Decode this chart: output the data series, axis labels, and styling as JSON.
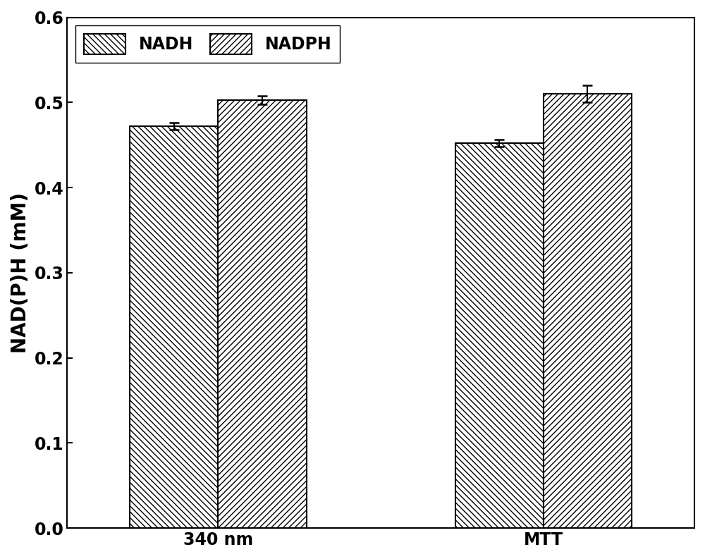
{
  "groups": [
    "340 nm",
    "MTT"
  ],
  "series": [
    "NADH",
    "NADPH"
  ],
  "values": {
    "NADH": [
      0.472,
      0.452
    ],
    "NADPH": [
      0.503,
      0.51
    ]
  },
  "errors": {
    "NADH": [
      0.004,
      0.004
    ],
    "NADPH": [
      0.005,
      0.01
    ]
  },
  "bar_width": 0.38,
  "group_positions": [
    1.0,
    2.4
  ],
  "ylim": [
    0.0,
    0.6
  ],
  "yticks": [
    0.0,
    0.1,
    0.2,
    0.3,
    0.4,
    0.5,
    0.6
  ],
  "ylabel": "NAD(P)H (mM)",
  "bar_facecolor": "white",
  "bar_edgecolor": "black",
  "hatch_nadh": "\\\\\\\\",
  "hatch_nadph": "////",
  "legend_fontsize": 17,
  "axis_fontsize": 20,
  "tick_fontsize": 17,
  "background_color": "white",
  "error_color": "black",
  "error_capsize": 5,
  "error_linewidth": 1.5,
  "bar_linewidth": 1.5
}
